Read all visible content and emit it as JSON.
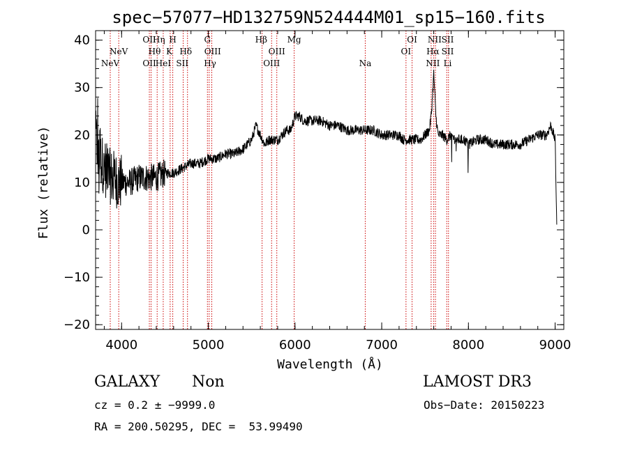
{
  "chart_data": {
    "type": "line",
    "title": "spec−57077−HD132759N524444M01_sp15−160.fits",
    "xlabel": "Wavelength (Å)",
    "ylabel": "Flux (relative)",
    "xlim": [
      3700,
      9100
    ],
    "ylim": [
      -21,
      42
    ],
    "x_ticks": [
      4000,
      5000,
      6000,
      7000,
      8000,
      9000
    ],
    "x_tick_labels": [
      "4000",
      "5000",
      "6000",
      "7000",
      "8000",
      "9000"
    ],
    "y_ticks": [
      -20,
      -10,
      0,
      10,
      20,
      30,
      40
    ],
    "y_tick_labels": [
      "−20",
      "−10",
      "0",
      "10",
      "20",
      "30",
      "40"
    ],
    "grid": false,
    "series": [
      {
        "values_x": [
          3700,
          3730,
          3760,
          3800,
          3840,
          3880,
          3920,
          3960,
          4000,
          4100,
          4200,
          4300,
          4400,
          4500,
          4600,
          4700,
          4800,
          4900,
          5000,
          5100,
          5200,
          5300,
          5400,
          5500,
          5550,
          5600,
          5650,
          5700,
          5750,
          5800,
          5850,
          5900,
          5950,
          6000,
          6050,
          6100,
          6200,
          6300,
          6400,
          6500,
          6600,
          6700,
          6800,
          6900,
          7000,
          7100,
          7200,
          7250,
          7300,
          7350,
          7400,
          7450,
          7500,
          7550,
          7575,
          7600,
          7625,
          7650,
          7700,
          7750,
          7800,
          7850,
          7900,
          7950,
          8000,
          8100,
          8200,
          8300,
          8400,
          8500,
          8600,
          8700,
          8800,
          8900,
          8950,
          9000,
          9020
        ],
        "values_y": [
          20,
          16,
          15,
          13,
          12,
          11,
          11,
          10,
          10,
          10,
          11,
          11,
          11,
          12,
          12,
          13,
          14,
          14,
          15,
          15,
          16,
          16,
          17,
          19,
          22,
          20,
          18,
          19,
          19,
          19,
          20,
          21,
          21,
          24,
          24,
          23,
          23,
          23,
          22,
          22,
          21,
          21,
          21,
          21,
          20,
          20,
          20,
          19,
          19,
          19,
          19,
          19,
          20,
          21,
          25,
          33,
          24,
          20,
          20,
          19,
          20,
          19,
          19,
          19,
          18,
          19,
          19,
          18,
          18,
          18,
          18,
          19,
          20,
          20,
          22,
          19,
          0
        ]
      }
    ],
    "lines": [
      {
        "x": 3869,
        "labels": [
          "NeV"
        ]
      },
      {
        "x": 3967,
        "labels": [
          "NeV"
        ]
      },
      {
        "x": 4320,
        "labels": [
          "OII"
        ]
      },
      {
        "x": 4340,
        "labels": [
          "OII",
          "Hθ"
        ]
      },
      {
        "x": 4410,
        "labels": [
          "Hη"
        ]
      },
      {
        "x": 4480,
        "labels": [
          "HeI"
        ]
      },
      {
        "x": 4560,
        "labels": [
          "K"
        ]
      },
      {
        "x": 4590,
        "labels": [
          "H"
        ]
      },
      {
        "x": 4710,
        "labels": [
          "SII"
        ]
      },
      {
        "x": 4760,
        "labels": [
          "Hδ"
        ]
      },
      {
        "x": 4990,
        "labels": [
          "G"
        ]
      },
      {
        "x": 5010,
        "labels": [
          "OIII"
        ]
      },
      {
        "x": 5040,
        "labels": [
          "Hγ"
        ]
      },
      {
        "x": 5620,
        "labels": [
          "Hβ"
        ]
      },
      {
        "x": 5730,
        "labels": [
          "OIII"
        ]
      },
      {
        "x": 5790,
        "labels": [
          "OIII"
        ]
      },
      {
        "x": 5990,
        "labels": [
          "Mg"
        ]
      },
      {
        "x": 6810,
        "labels": [
          "Na"
        ]
      },
      {
        "x": 7280,
        "labels": [
          "OI"
        ]
      },
      {
        "x": 7350,
        "labels": [
          "OI"
        ]
      },
      {
        "x": 7570,
        "labels": [
          "NII"
        ]
      },
      {
        "x": 7600,
        "labels": [
          "Hα"
        ]
      },
      {
        "x": 7620,
        "labels": [
          "NII"
        ]
      },
      {
        "x": 7750,
        "labels": [
          "SII"
        ]
      },
      {
        "x": 7770,
        "labels": [
          "SII",
          "Li"
        ]
      }
    ],
    "line_labels": [
      {
        "text": "NeV",
        "x": 3869,
        "row": 2
      },
      {
        "text": "NeV",
        "x": 3967,
        "row": 1
      },
      {
        "text": "OII",
        "x": 4320,
        "row": 0
      },
      {
        "text": "OII",
        "x": 4320,
        "row": 2
      },
      {
        "text": "Hη",
        "x": 4430,
        "row": 0
      },
      {
        "text": "Hθ",
        "x": 4380,
        "row": 1
      },
      {
        "text": "HeI",
        "x": 4480,
        "row": 2
      },
      {
        "text": "H",
        "x": 4590,
        "row": 0
      },
      {
        "text": "K",
        "x": 4550,
        "row": 1
      },
      {
        "text": "SII",
        "x": 4700,
        "row": 2
      },
      {
        "text": "Hδ",
        "x": 4740,
        "row": 1
      },
      {
        "text": "G",
        "x": 4990,
        "row": 0
      },
      {
        "text": "OIII",
        "x": 5050,
        "row": 1
      },
      {
        "text": "Hγ",
        "x": 5020,
        "row": 2
      },
      {
        "text": "Hβ",
        "x": 5610,
        "row": 0
      },
      {
        "text": "OIII",
        "x": 5790,
        "row": 1
      },
      {
        "text": "OIII",
        "x": 5730,
        "row": 2
      },
      {
        "text": "Mg",
        "x": 5990,
        "row": 0
      },
      {
        "text": "Na",
        "x": 6810,
        "row": 2
      },
      {
        "text": "OI",
        "x": 7350,
        "row": 0
      },
      {
        "text": "OI",
        "x": 7280,
        "row": 1
      },
      {
        "text": "NII",
        "x": 7610,
        "row": 0
      },
      {
        "text": "SII",
        "x": 7760,
        "row": 0
      },
      {
        "text": "Hα",
        "x": 7590,
        "row": 1
      },
      {
        "text": "SII",
        "x": 7760,
        "row": 1
      },
      {
        "text": "NII",
        "x": 7590,
        "row": 2
      },
      {
        "text": "Li",
        "x": 7760,
        "row": 2
      }
    ],
    "colors": {
      "spectrum": "#000000",
      "lines": "#cc0000",
      "axes": "#000000"
    }
  },
  "footer": {
    "class_label": "GALAXY",
    "subclass_label": "Non",
    "survey": "LAMOST DR3",
    "redshift_text": "cz = 0.2 ± −9999.0",
    "obs_date_text": "Obs−Date: 20150223",
    "coords_text": "RA = 200.50295, DEC =  53.99490"
  }
}
